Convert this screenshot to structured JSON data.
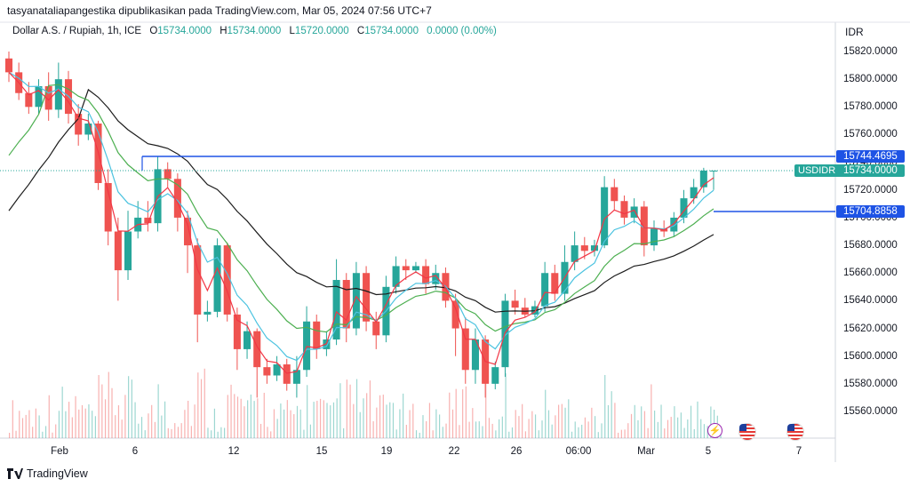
{
  "header": {
    "text": "tasyanataliapangestika dipublikasikan pada TradingView.com, Mar 05, 2024 07:56 UTC+7"
  },
  "legend": {
    "symbol": "Dollar A.S. / Rupiah, 1h, ICE",
    "o_label": "O",
    "o": "15734.0000",
    "h_label": "H",
    "h": "15734.0000",
    "l_label": "L",
    "l": "15720.0000",
    "c_label": "C",
    "c": "15734.0000",
    "change": "0.0000 (0.00%)"
  },
  "price_axis": {
    "currency": "IDR",
    "ticks": [
      "15820.0000",
      "15800.0000",
      "15780.0000",
      "15760.0000",
      "15740.0000",
      "15720.0000",
      "15700.0000",
      "15680.0000",
      "15660.0000",
      "15640.0000",
      "15620.0000",
      "15600.0000",
      "15580.0000",
      "15560.0000"
    ]
  },
  "time_axis": {
    "ticks": [
      "Feb",
      "6",
      "12",
      "15",
      "19",
      "22",
      "26",
      "06:00",
      "Mar",
      "5",
      "7"
    ]
  },
  "tags": {
    "upper_line": "15744.4695",
    "symbol_label": "USDIDR",
    "last_price": "15734.0000",
    "lower_line": "15704.8858"
  },
  "colors": {
    "up": "#26a69a",
    "down": "#ef5350",
    "line_blue": "#1e53e5",
    "ema_red": "#f23645",
    "ema_cyan": "#4cc3e0",
    "ema_green": "#4caf50",
    "ema_black": "#1c1c1c"
  },
  "icons": [
    "lightning-icon",
    "us-flag-icon",
    "us-flag-icon"
  ],
  "brand": {
    "name": "TradingView"
  },
  "chart_data": {
    "type": "candlestick",
    "symbol": "USDIDR",
    "ylim": [
      15550,
      15828
    ],
    "hlines": [
      15744.4695,
      15704.8858
    ],
    "candles": [
      {
        "o": 15815,
        "c": 15805,
        "h": 15820,
        "l": 15798
      },
      {
        "o": 15805,
        "c": 15790,
        "h": 15812,
        "l": 15785
      },
      {
        "o": 15790,
        "c": 15780,
        "h": 15798,
        "l": 15775
      },
      {
        "o": 15780,
        "c": 15795,
        "h": 15800,
        "l": 15775
      },
      {
        "o": 15795,
        "c": 15778,
        "h": 15805,
        "l": 15770
      },
      {
        "o": 15778,
        "c": 15800,
        "h": 15812,
        "l": 15772
      },
      {
        "o": 15800,
        "c": 15775,
        "h": 15806,
        "l": 15768
      },
      {
        "o": 15775,
        "c": 15760,
        "h": 15782,
        "l": 15752
      },
      {
        "o": 15760,
        "c": 15768,
        "h": 15775,
        "l": 15756
      },
      {
        "o": 15768,
        "c": 15725,
        "h": 15770,
        "l": 15720
      },
      {
        "o": 15725,
        "c": 15690,
        "h": 15735,
        "l": 15680
      },
      {
        "o": 15690,
        "c": 15662,
        "h": 15700,
        "l": 15640
      },
      {
        "o": 15662,
        "c": 15690,
        "h": 15705,
        "l": 15655
      },
      {
        "o": 15690,
        "c": 15700,
        "h": 15712,
        "l": 15685
      },
      {
        "o": 15700,
        "c": 15696,
        "h": 15712,
        "l": 15690
      },
      {
        "o": 15696,
        "c": 15735,
        "h": 15744,
        "l": 15690
      },
      {
        "o": 15735,
        "c": 15728,
        "h": 15740,
        "l": 15722
      },
      {
        "o": 15728,
        "c": 15700,
        "h": 15732,
        "l": 15690
      },
      {
        "o": 15700,
        "c": 15680,
        "h": 15705,
        "l": 15660
      },
      {
        "o": 15680,
        "c": 15630,
        "h": 15685,
        "l": 15610
      },
      {
        "o": 15630,
        "c": 15632,
        "h": 15640,
        "l": 15625
      },
      {
        "o": 15632,
        "c": 15680,
        "h": 15685,
        "l": 15628
      },
      {
        "o": 15680,
        "c": 15630,
        "h": 15682,
        "l": 15625
      },
      {
        "o": 15630,
        "c": 15605,
        "h": 15635,
        "l": 15590
      },
      {
        "o": 15605,
        "c": 15618,
        "h": 15625,
        "l": 15598
      },
      {
        "o": 15618,
        "c": 15592,
        "h": 15620,
        "l": 15570
      },
      {
        "o": 15592,
        "c": 15586,
        "h": 15598,
        "l": 15580
      },
      {
        "o": 15586,
        "c": 15594,
        "h": 15600,
        "l": 15582
      },
      {
        "o": 15594,
        "c": 15580,
        "h": 15598,
        "l": 15575
      },
      {
        "o": 15580,
        "c": 15590,
        "h": 15600,
        "l": 15570
      },
      {
        "o": 15590,
        "c": 15625,
        "h": 15636,
        "l": 15585
      },
      {
        "o": 15625,
        "c": 15605,
        "h": 15630,
        "l": 15598
      },
      {
        "o": 15605,
        "c": 15612,
        "h": 15618,
        "l": 15600
      },
      {
        "o": 15612,
        "c": 15655,
        "h": 15670,
        "l": 15608
      },
      {
        "o": 15655,
        "c": 15620,
        "h": 15660,
        "l": 15610
      },
      {
        "o": 15620,
        "c": 15660,
        "h": 15668,
        "l": 15615
      },
      {
        "o": 15660,
        "c": 15625,
        "h": 15665,
        "l": 15618
      },
      {
        "o": 15625,
        "c": 15615,
        "h": 15632,
        "l": 15605
      },
      {
        "o": 15615,
        "c": 15650,
        "h": 15658,
        "l": 15610
      },
      {
        "o": 15650,
        "c": 15665,
        "h": 15672,
        "l": 15645
      },
      {
        "o": 15665,
        "c": 15662,
        "h": 15670,
        "l": 15655
      },
      {
        "o": 15662,
        "c": 15665,
        "h": 15668,
        "l": 15660
      },
      {
        "o": 15665,
        "c": 15652,
        "h": 15670,
        "l": 15645
      },
      {
        "o": 15652,
        "c": 15660,
        "h": 15666,
        "l": 15648
      },
      {
        "o": 15660,
        "c": 15640,
        "h": 15664,
        "l": 15635
      },
      {
        "o": 15640,
        "c": 15620,
        "h": 15645,
        "l": 15600
      },
      {
        "o": 15620,
        "c": 15590,
        "h": 15628,
        "l": 15580
      },
      {
        "o": 15590,
        "c": 15612,
        "h": 15620,
        "l": 15580
      },
      {
        "o": 15612,
        "c": 15580,
        "h": 15615,
        "l": 15570
      },
      {
        "o": 15580,
        "c": 15592,
        "h": 15596,
        "l": 15576
      },
      {
        "o": 15592,
        "c": 15640,
        "h": 15645,
        "l": 15585
      },
      {
        "o": 15640,
        "c": 15635,
        "h": 15648,
        "l": 15630
      },
      {
        "o": 15635,
        "c": 15630,
        "h": 15642,
        "l": 15628
      },
      {
        "o": 15630,
        "c": 15636,
        "h": 15640,
        "l": 15628
      },
      {
        "o": 15636,
        "c": 15660,
        "h": 15668,
        "l": 15632
      },
      {
        "o": 15660,
        "c": 15645,
        "h": 15666,
        "l": 15640
      },
      {
        "o": 15645,
        "c": 15668,
        "h": 15680,
        "l": 15640
      },
      {
        "o": 15668,
        "c": 15680,
        "h": 15690,
        "l": 15662
      },
      {
        "o": 15680,
        "c": 15676,
        "h": 15686,
        "l": 15670
      },
      {
        "o": 15676,
        "c": 15680,
        "h": 15684,
        "l": 15672
      },
      {
        "o": 15680,
        "c": 15722,
        "h": 15730,
        "l": 15678
      },
      {
        "o": 15722,
        "c": 15712,
        "h": 15728,
        "l": 15705
      },
      {
        "o": 15712,
        "c": 15700,
        "h": 15716,
        "l": 15695
      },
      {
        "o": 15700,
        "c": 15708,
        "h": 15714,
        "l": 15696
      },
      {
        "o": 15708,
        "c": 15680,
        "h": 15712,
        "l": 15672
      },
      {
        "o": 15680,
        "c": 15692,
        "h": 15698,
        "l": 15676
      },
      {
        "o": 15692,
        "c": 15690,
        "h": 15698,
        "l": 15686
      },
      {
        "o": 15690,
        "c": 15700,
        "h": 15704,
        "l": 15686
      },
      {
        "o": 15700,
        "c": 15714,
        "h": 15720,
        "l": 15696
      },
      {
        "o": 15714,
        "c": 15722,
        "h": 15728,
        "l": 15710
      },
      {
        "o": 15722,
        "c": 15734,
        "h": 15736,
        "l": 15718
      },
      {
        "o": 15734,
        "c": 15734,
        "h": 15734,
        "l": 15720
      }
    ]
  }
}
